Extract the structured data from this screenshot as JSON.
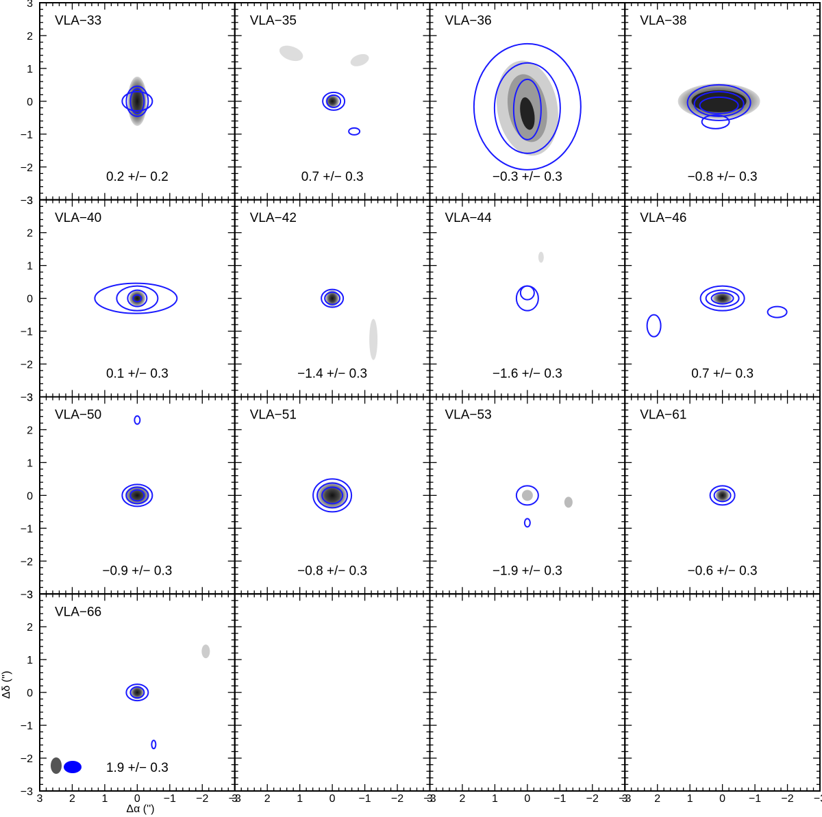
{
  "colors": {
    "contour": "#1a1aff",
    "beam_gray": "#555555",
    "beam_blue": "#0000ff",
    "frame": "#000000"
  },
  "axes": {
    "x_title": "Δα ('')",
    "y_title": "Δδ ('')",
    "x_range": [
      3,
      -3
    ],
    "y_range": [
      -3,
      3
    ],
    "x_ticks": [
      "3",
      "2",
      "1",
      "0",
      "−1",
      "−2",
      "−3"
    ],
    "y_ticks": [
      "3",
      "2",
      "1",
      "0",
      "−1",
      "−2",
      "−3"
    ]
  },
  "panels": [
    {
      "name": "VLA−33",
      "value": "0.2 +/− 0.2"
    },
    {
      "name": "VLA−35",
      "value": "0.7 +/− 0.3"
    },
    {
      "name": "VLA−36",
      "value": "−0.3 +/− 0.3"
    },
    {
      "name": "VLA−38",
      "value": "−0.8 +/− 0.3"
    },
    {
      "name": "VLA−40",
      "value": "0.1 +/− 0.3"
    },
    {
      "name": "VLA−42",
      "value": "−1.4 +/− 0.3"
    },
    {
      "name": "VLA−44",
      "value": "−1.6 +/− 0.3"
    },
    {
      "name": "VLA−46",
      "value": "0.7 +/− 0.3"
    },
    {
      "name": "VLA−50",
      "value": "−0.9 +/− 0.3"
    },
    {
      "name": "VLA−51",
      "value": "−0.8 +/− 0.3"
    },
    {
      "name": "VLA−53",
      "value": "−1.9 +/− 0.3"
    },
    {
      "name": "VLA−61",
      "value": "−0.6 +/− 0.3"
    },
    {
      "name": "VLA−66",
      "value": "1.9 +/− 0.3"
    },
    {
      "name": "",
      "value": ""
    },
    {
      "name": "",
      "value": ""
    },
    {
      "name": "",
      "value": ""
    }
  ]
}
